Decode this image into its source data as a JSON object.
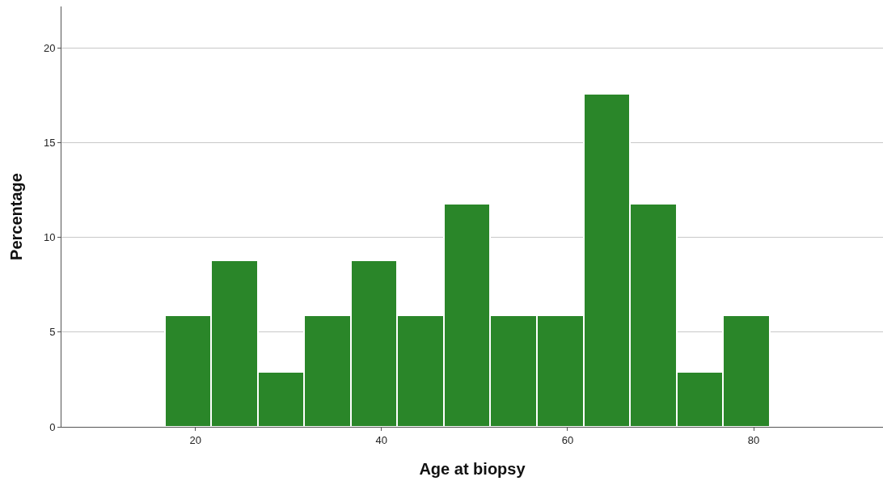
{
  "chart_data": {
    "type": "histogram",
    "xlabel": "Age at biopsy",
    "ylabel": "Percentage",
    "bins": [
      16.7,
      21.7,
      26.7,
      31.7,
      36.7,
      41.7,
      46.7,
      51.7,
      56.7,
      61.7,
      66.7,
      71.7,
      76.7,
      81.7
    ],
    "values": [
      5.9,
      8.8,
      2.9,
      5.9,
      8.8,
      5.9,
      11.8,
      5.9,
      5.9,
      17.6,
      11.8,
      2.9,
      5.9
    ],
    "color": "#2a8629",
    "xlim": [
      5.6,
      93.9
    ],
    "xticks": [
      20,
      40,
      60,
      80
    ],
    "ylim": [
      0,
      22.2
    ],
    "yticks": [
      0,
      5,
      10,
      15,
      20
    ],
    "grid": "y",
    "legend": false
  }
}
